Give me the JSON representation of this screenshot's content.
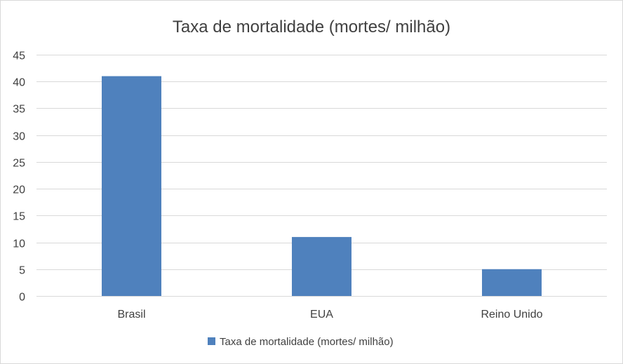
{
  "chart_data": {
    "type": "bar",
    "title": "Taxa de mortalidade (mortes/ milhão)",
    "categories": [
      "Brasil",
      "EUA",
      "Reino Unido"
    ],
    "series": [
      {
        "name": "Taxa de mortalidade (mortes/ milhão)",
        "values": [
          41,
          11,
          5
        ],
        "color": "#4f81bd"
      }
    ],
    "ylim": [
      0,
      45
    ],
    "yticks": [
      0,
      5,
      10,
      15,
      20,
      25,
      30,
      35,
      40,
      45
    ],
    "grid": true,
    "legend_position": "bottom",
    "colors": {
      "gridline": "#d9d9d9",
      "text": "#404040"
    }
  }
}
